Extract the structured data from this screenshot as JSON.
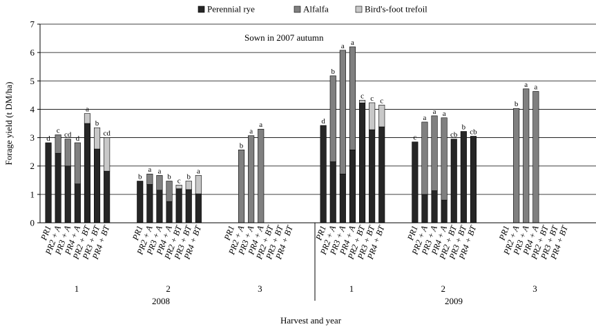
{
  "chart_data": {
    "type": "bar",
    "stacked": true,
    "annotation": "Sown in 2007 autumn",
    "ylabel": "Forage yield (t DM/ha)",
    "xlabel": "Harvest and year",
    "ylim": [
      0,
      7
    ],
    "y_ticks": [
      "0",
      "1",
      "2",
      "3",
      "4",
      "5",
      "6",
      "7"
    ],
    "grid": true,
    "legend_position": "top",
    "treatments": [
      "PR1",
      "PR2 + A",
      "PR3 + A",
      "PR4 + A",
      "PR2 + BT",
      "PR3 + BT",
      "PR4 + BT"
    ],
    "series": [
      {
        "name": "Perennial rye",
        "color": "#262626"
      },
      {
        "name": "Alfalfa",
        "color": "#808080"
      },
      {
        "name": "Bird's-foot trefoil",
        "color": "#c8c8c8"
      }
    ],
    "groups": [
      {
        "year": "2008",
        "harvest": "1",
        "rye": [
          2.82,
          2.45,
          2.0,
          1.37,
          3.5,
          2.6,
          1.82
        ],
        "alfalfa": [
          0,
          0.65,
          0.95,
          1.45,
          0,
          0,
          0
        ],
        "trefoil": [
          0,
          0,
          0,
          0,
          0.35,
          0.75,
          1.18
        ],
        "labels": [
          "d",
          "c",
          "cd",
          "d",
          "a",
          "b",
          "cd"
        ]
      },
      {
        "year": "2008",
        "harvest": "2",
        "rye": [
          1.47,
          1.35,
          1.15,
          0.75,
          1.2,
          1.17,
          1.02
        ],
        "alfalfa": [
          0,
          0.37,
          0.52,
          0.72,
          0,
          0,
          0
        ],
        "trefoil": [
          0,
          0,
          0,
          0,
          0.13,
          0.3,
          0.65
        ],
        "labels": [
          "b",
          "a",
          "a",
          "b",
          "c",
          "b",
          "a"
        ]
      },
      {
        "year": "2008",
        "harvest": "3",
        "rye": [
          0,
          0,
          0,
          0,
          0,
          0,
          0
        ],
        "alfalfa": [
          0,
          2.57,
          3.07,
          3.3,
          0,
          0,
          0
        ],
        "trefoil": [
          0,
          0,
          0,
          0,
          0,
          0,
          0
        ],
        "labels": [
          "",
          "b",
          "a",
          "a",
          "",
          "",
          ""
        ]
      },
      {
        "year": "2009",
        "harvest": "1",
        "rye": [
          3.43,
          2.15,
          1.72,
          2.57,
          4.22,
          3.28,
          3.38
        ],
        "alfalfa": [
          0,
          3.03,
          4.36,
          3.63,
          0,
          0,
          0
        ],
        "trefoil": [
          0,
          0,
          0,
          0,
          0.1,
          0.95,
          0.77
        ],
        "labels": [
          "d",
          "b",
          "a",
          "a",
          "c",
          "c",
          "c"
        ]
      },
      {
        "year": "2009",
        "harvest": "2",
        "rye": [
          2.85,
          1.0,
          1.13,
          0.8,
          2.95,
          3.22,
          3.05
        ],
        "alfalfa": [
          0,
          2.55,
          2.64,
          2.9,
          0,
          0,
          0
        ],
        "trefoil": [
          0,
          0,
          0,
          0,
          0,
          0,
          0
        ],
        "labels": [
          "c",
          "a",
          "a",
          "a",
          "cb",
          "b",
          "cb"
        ]
      },
      {
        "year": "2009",
        "harvest": "3",
        "rye": [
          0,
          0,
          0,
          0,
          0,
          0,
          0
        ],
        "alfalfa": [
          0,
          4.03,
          4.72,
          4.63,
          0,
          0,
          0
        ],
        "trefoil": [
          0,
          0,
          0,
          0,
          0,
          0,
          0
        ],
        "labels": [
          "",
          "b",
          "a",
          "a",
          "",
          "",
          ""
        ]
      }
    ],
    "years": [
      "2008",
      "2009"
    ]
  }
}
